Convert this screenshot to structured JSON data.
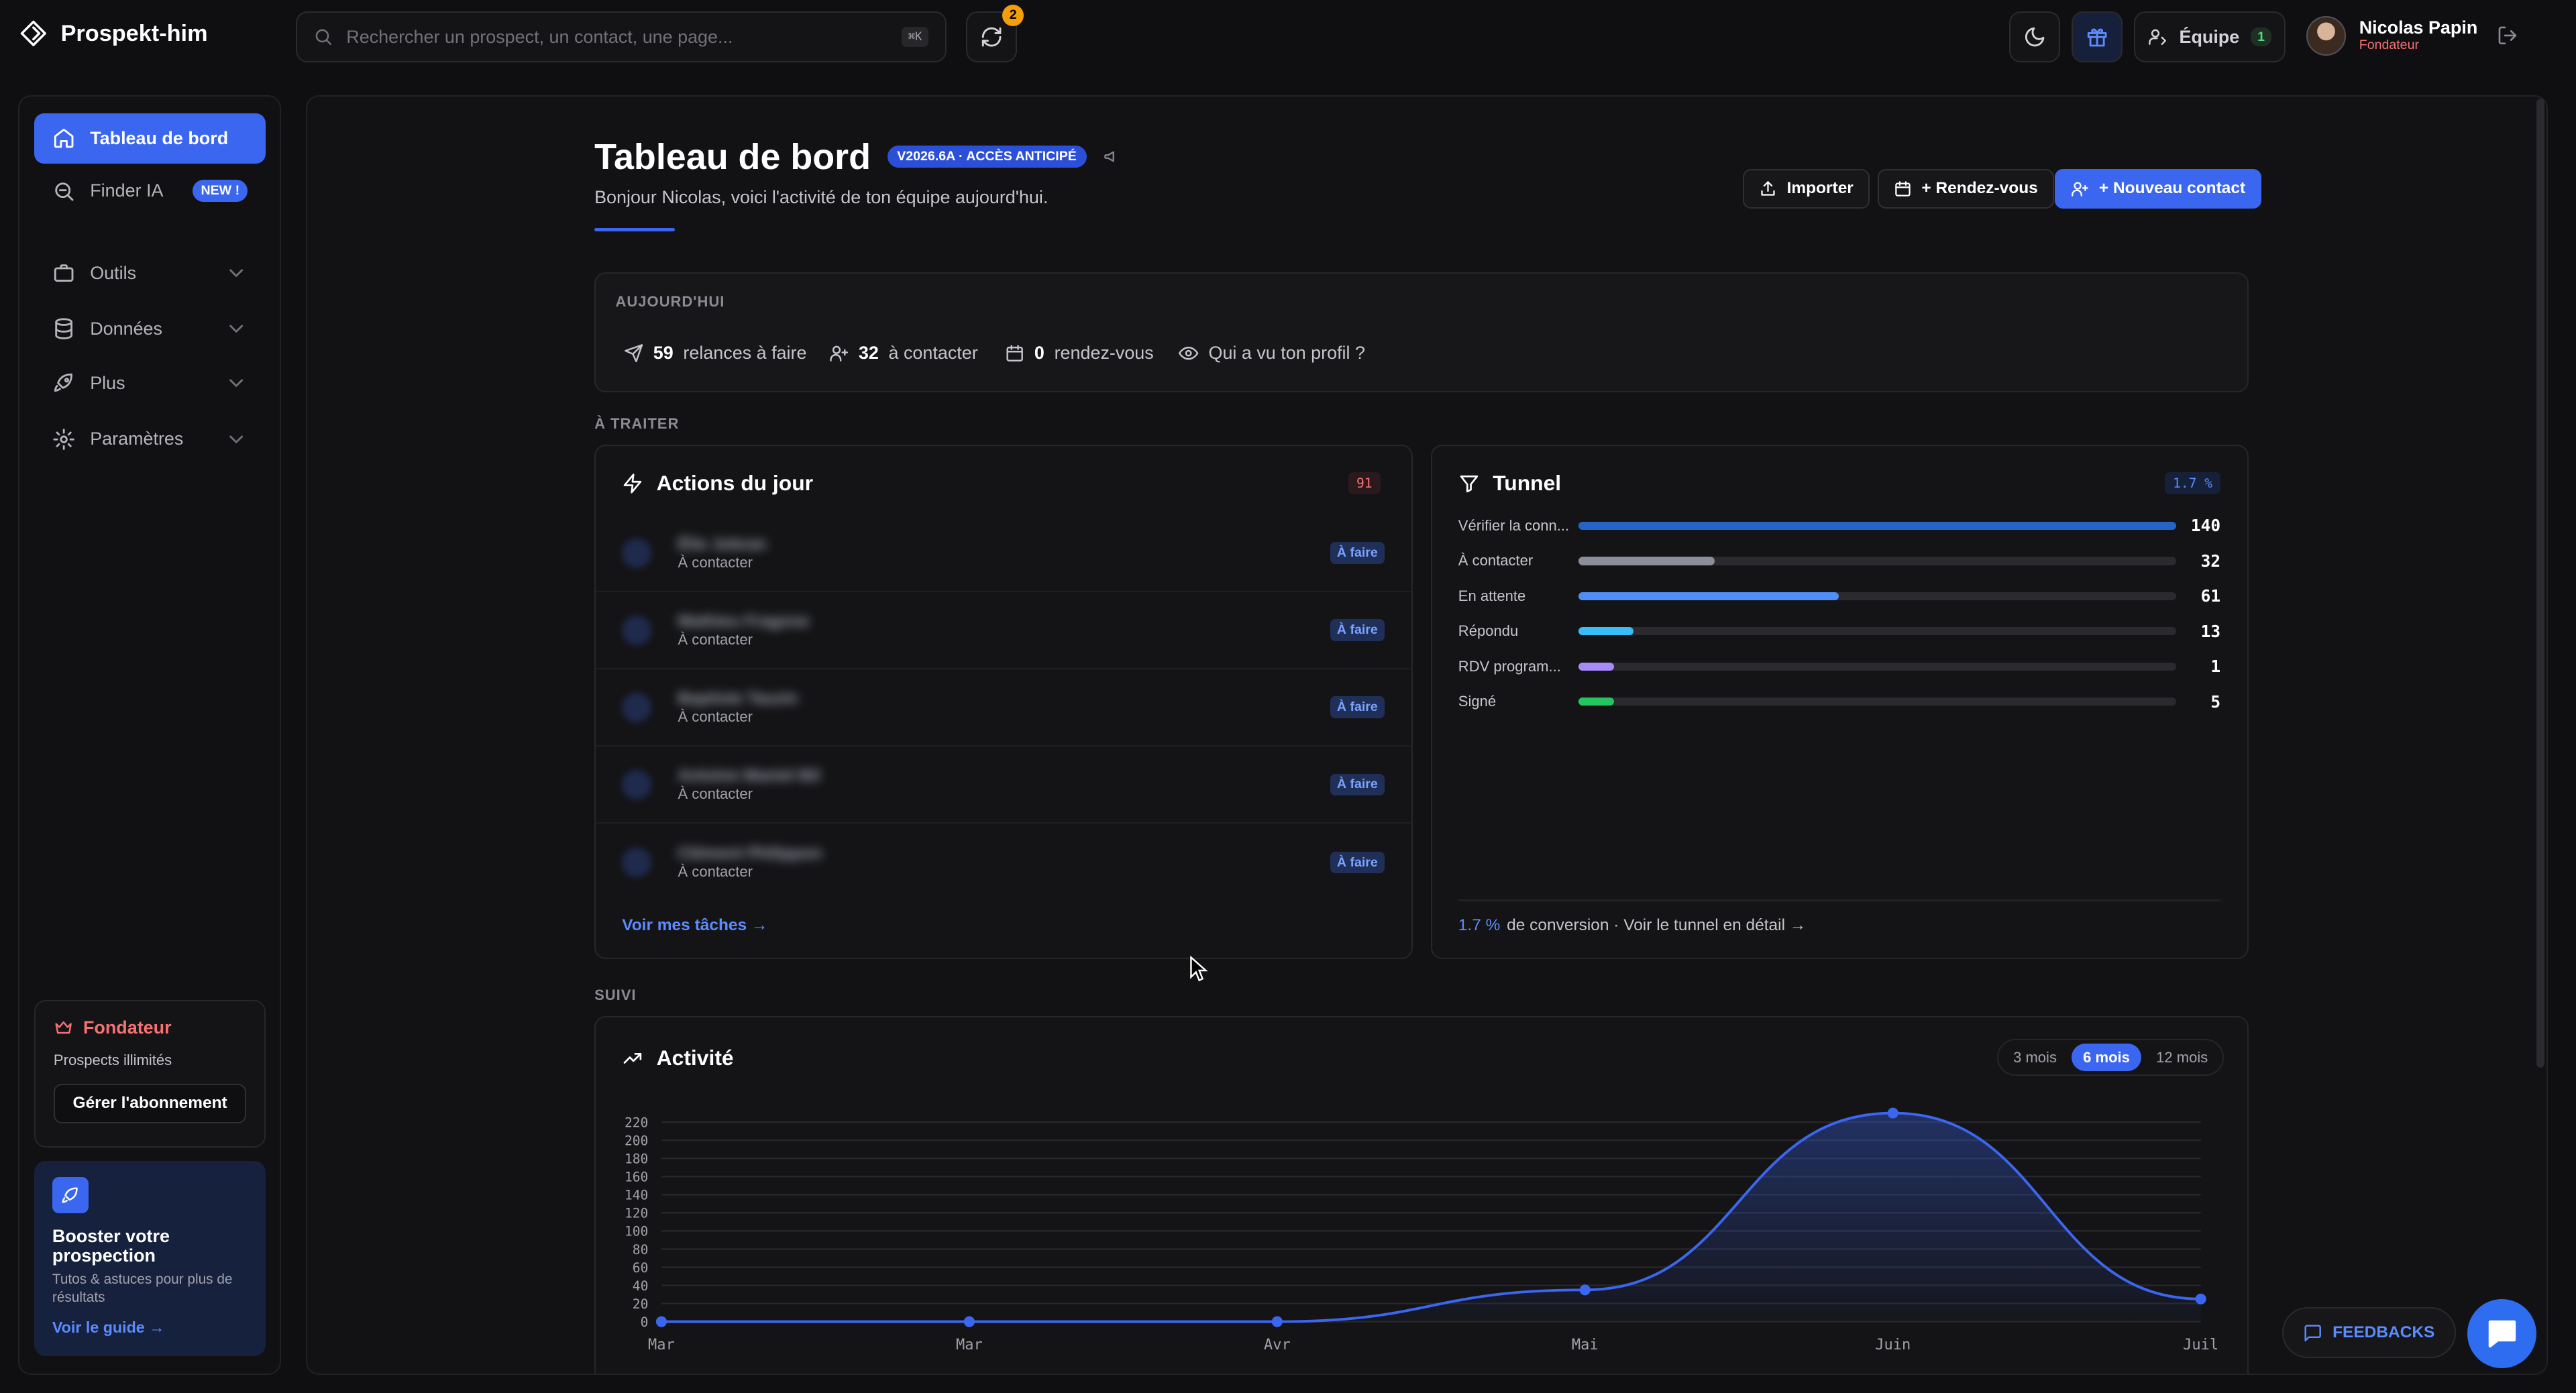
{
  "app": {
    "name": "Prospekt-him"
  },
  "search": {
    "placeholder": "Rechercher un prospect, un contact, une page...",
    "shortcut": "⌘K"
  },
  "topbar": {
    "sync_badge": "2",
    "team_label": "Équipe",
    "team_count": "1"
  },
  "user": {
    "name": "Nicolas Papin",
    "role": "Fondateur"
  },
  "sidebar": {
    "items": [
      {
        "label": "Tableau de bord",
        "icon": "home-icon"
      },
      {
        "label": "Finder IA",
        "icon": "search-icon",
        "badge": "NEW !"
      },
      {
        "label": "Outils",
        "icon": "briefcase-icon"
      },
      {
        "label": "Données",
        "icon": "database-icon"
      },
      {
        "label": "Plus",
        "icon": "rocket-icon"
      },
      {
        "label": "Paramètres",
        "icon": "gear-icon"
      }
    ],
    "plan": {
      "title": "Fondateur",
      "desc": "Prospects illimités",
      "button": "Gérer l'abonnement"
    },
    "guide": {
      "title": "Booster votre prospection",
      "desc": "Tutos & astuces pour plus de résultats",
      "link": "Voir le guide →"
    }
  },
  "header": {
    "title": "Tableau de bord",
    "version": "V2026.6A · ACCÈS ANTICIPÉ",
    "subtitle": "Bonjour Nicolas, voici l'activité de ton équipe aujourd'hui.",
    "buttons": {
      "import": "Importer",
      "rdv": "+ Rendez-vous",
      "new_contact": "+ Nouveau contact"
    }
  },
  "today": {
    "label": "AUJOURD'HUI",
    "relances_n": "59",
    "relances": "relances à faire",
    "contacter_n": "32",
    "contacter": "à contacter",
    "rdv_n": "0",
    "rdv": "rendez-vous",
    "profile": "Qui a vu ton profil ?"
  },
  "sections": {
    "a_traiter": "À TRAITER",
    "suivi": "SUIVI"
  },
  "actions": {
    "title": "Actions du jour",
    "count": "91",
    "rows": [
      {
        "name": "Élie Jobran",
        "status": "À contacter",
        "tag": "À faire"
      },
      {
        "name": "Mathieu Fragone",
        "status": "À contacter",
        "tag": "À faire"
      },
      {
        "name": "Baptiste Tauzin",
        "status": "À contacter",
        "tag": "À faire"
      },
      {
        "name": "Antoine Maniel Bil",
        "status": "À contacter",
        "tag": "À faire"
      },
      {
        "name": "Clément Philippon",
        "status": "À contacter",
        "tag": "À faire"
      }
    ],
    "link": "Voir mes tâches →"
  },
  "tunnel": {
    "title": "Tunnel",
    "badge": "1.7 %",
    "max": 140,
    "rows": [
      {
        "label": "Vérifier la conn...",
        "value": 140,
        "value_label": "140",
        "color": "#2563c9"
      },
      {
        "label": "À contacter",
        "value": 32,
        "value_label": "32",
        "color": "#8b8f99"
      },
      {
        "label": "En attente",
        "value": 61,
        "value_label": "61",
        "color": "#4f8ef7"
      },
      {
        "label": "Répondu",
        "value": 13,
        "value_label": "13",
        "color": "#38bdf8"
      },
      {
        "label": "RDV program...",
        "value": 1,
        "value_label": "1",
        "color": "#a78bfa"
      },
      {
        "label": "Signé",
        "value": 5,
        "value_label": "5",
        "color": "#22c55e"
      }
    ],
    "footer_pct": "1.7 %",
    "footer_text": "de conversion · Voir le tunnel en détail →"
  },
  "activity": {
    "title": "Activité",
    "ranges": [
      "3 mois",
      "6 mois",
      "12 mois"
    ],
    "selected_range": "6 mois"
  },
  "chart_data": {
    "type": "area",
    "categories": [
      "Mar",
      "Mar",
      "Avr",
      "Mai",
      "Juin",
      "Juil"
    ],
    "values": [
      0,
      0,
      0,
      35,
      230,
      25
    ],
    "ylim": [
      0,
      230
    ],
    "yticks": [
      0,
      20,
      40,
      60,
      80,
      100,
      120,
      140,
      160,
      180,
      200,
      220
    ],
    "grid": true,
    "color": "#3b66f0"
  },
  "feedback": {
    "label": "FEEDBACKS"
  },
  "colors": {
    "accent": "#3b66f0",
    "background": "#0f0f11",
    "danger": "#f87171",
    "warning": "#f59e0b"
  }
}
